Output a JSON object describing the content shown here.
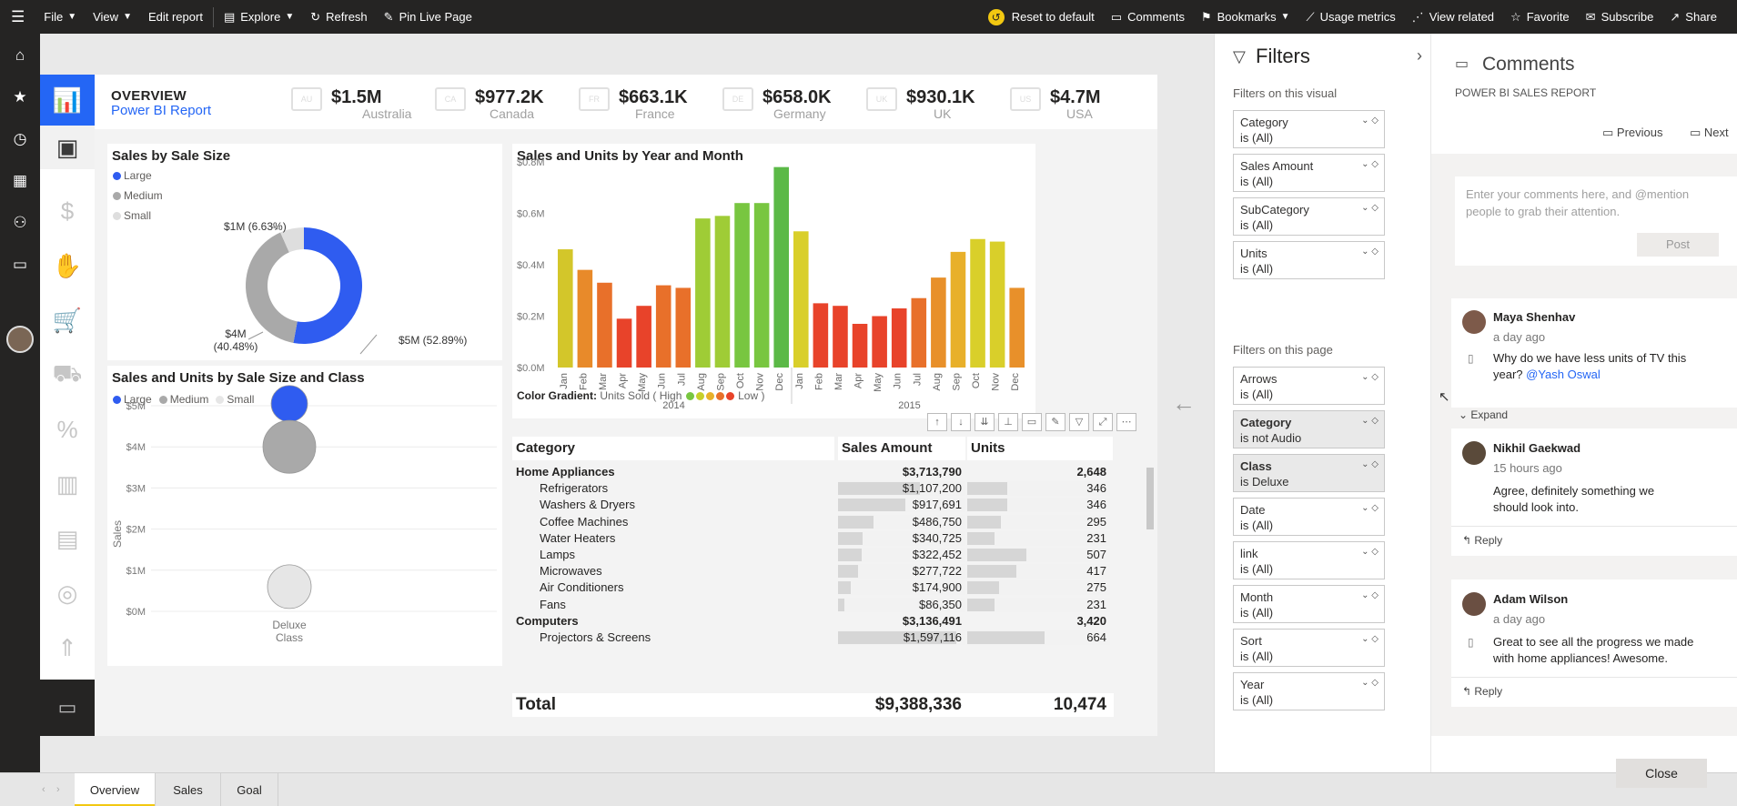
{
  "topbar": {
    "file": "File",
    "view": "View",
    "edit_report": "Edit report",
    "explore": "Explore",
    "refresh": "Refresh",
    "pin_live_page": "Pin Live Page",
    "reset_to_default": "Reset to default",
    "comments": "Comments",
    "bookmarks": "Bookmarks",
    "usage_metrics": "Usage metrics",
    "view_related": "View related",
    "favorite": "Favorite",
    "subscribe": "Subscribe",
    "share": "Share"
  },
  "header": {
    "title": "OVERVIEW",
    "subtitle": "Power BI Report"
  },
  "kpis": [
    {
      "value": "$1.5M",
      "label": "Australia",
      "flag": "AU"
    },
    {
      "value": "$977.2K",
      "label": "Canada",
      "flag": "CA"
    },
    {
      "value": "$663.1K",
      "label": "France",
      "flag": "FR"
    },
    {
      "value": "$658.0K",
      "label": "Germany",
      "flag": "DE"
    },
    {
      "value": "$930.1K",
      "label": "UK",
      "flag": "UK"
    },
    {
      "value": "$4.7M",
      "label": "USA",
      "flag": "US"
    }
  ],
  "chart_data": [
    {
      "type": "pie",
      "title": "Sales by Sale Size",
      "categories": [
        "Large",
        "Medium",
        "Small"
      ],
      "values": [
        52.89,
        40.48,
        6.63
      ],
      "labels": [
        "$5M (52.89%)",
        "$4M (40.48%)",
        "$1M (6.63%)"
      ],
      "colors": [
        "#2f5cf0",
        "#a9a9a9",
        "#dedede"
      ],
      "legend": "top-left"
    },
    {
      "type": "bar",
      "title": "Sales and Units by Year and Month",
      "categories": [
        "Jan",
        "Feb",
        "Mar",
        "Apr",
        "May",
        "Jun",
        "Jul",
        "Aug",
        "Sep",
        "Oct",
        "Nov",
        "Dec",
        "Jan",
        "Feb",
        "Mar",
        "Apr",
        "May",
        "Jun",
        "Jul",
        "Aug",
        "Sep",
        "Oct",
        "Nov",
        "Dec"
      ],
      "groups": [
        "2014",
        "2015"
      ],
      "values": [
        0.46,
        0.38,
        0.33,
        0.19,
        0.24,
        0.32,
        0.31,
        0.58,
        0.59,
        0.64,
        0.64,
        0.78,
        0.53,
        0.25,
        0.24,
        0.17,
        0.2,
        0.23,
        0.27,
        0.35,
        0.45,
        0.5,
        0.49,
        0.31
      ],
      "colors": [
        "#d3c62a",
        "#e88a2a",
        "#e8702a",
        "#e8432a",
        "#e8432a",
        "#e8702a",
        "#e8702a",
        "#9fcc36",
        "#9fcc36",
        "#78c640",
        "#78c640",
        "#5bb947",
        "#d9cf2a",
        "#e8432a",
        "#e8432a",
        "#e8432a",
        "#e8432a",
        "#e8432a",
        "#e8702a",
        "#e8902a",
        "#e8b02a",
        "#d9cf2a",
        "#d9cf2a",
        "#e8902a"
      ],
      "ytick_labels": [
        "$0.0M",
        "$0.2M",
        "$0.4M",
        "$0.6M",
        "$0.8M"
      ],
      "ylim": [
        0,
        0.8
      ],
      "gradient_label": "Color Gradient:",
      "gradient_text": "Units Sold  ( High",
      "gradient_low": "Low )",
      "gradient_colors": [
        "#78c640",
        "#c7cf2a",
        "#e8b02a",
        "#e8702a",
        "#e8432a"
      ]
    },
    {
      "type": "scatter",
      "title": "Sales and Units by Sale Size and Class",
      "legend": [
        "Large",
        "Medium",
        "Small"
      ],
      "legend_colors": [
        "#2f5cf0",
        "#a9a9a9",
        "#dedede"
      ],
      "ylabel": "Sales",
      "ytick_labels": [
        "$0M",
        "$1M",
        "$2M",
        "$3M",
        "$4M",
        "$5M"
      ],
      "ylim": [
        0,
        5
      ],
      "x_category": "Deluxe",
      "xlabel": "Class",
      "points": [
        {
          "series": "Large",
          "y": 5.05,
          "color": "#2f5cf0"
        },
        {
          "series": "Medium",
          "y": 4.0,
          "color": "#a9a9a9"
        },
        {
          "series": "Small",
          "y": 0.6,
          "color": "#e6e6e6"
        }
      ]
    }
  ],
  "table": {
    "headers": [
      "Category",
      "Sales Amount",
      "Units"
    ],
    "rows": [
      {
        "name": "Home Appliances",
        "sales": "$3,713,790",
        "units": "2,648",
        "group": true
      },
      {
        "name": "Refrigerators",
        "sales": "$1,107,200",
        "units": "346",
        "sales_frac": 0.69,
        "units_frac": 0.52
      },
      {
        "name": "Washers & Dryers",
        "sales": "$917,691",
        "units": "346",
        "sales_frac": 0.57,
        "units_frac": 0.52
      },
      {
        "name": "Coffee Machines",
        "sales": "$486,750",
        "units": "295",
        "sales_frac": 0.3,
        "units_frac": 0.44
      },
      {
        "name": "Water Heaters",
        "sales": "$340,725",
        "units": "231",
        "sales_frac": 0.21,
        "units_frac": 0.35
      },
      {
        "name": "Lamps",
        "sales": "$322,452",
        "units": "507",
        "sales_frac": 0.2,
        "units_frac": 0.76
      },
      {
        "name": "Microwaves",
        "sales": "$277,722",
        "units": "417",
        "sales_frac": 0.17,
        "units_frac": 0.63
      },
      {
        "name": "Air Conditioners",
        "sales": "$174,900",
        "units": "275",
        "sales_frac": 0.11,
        "units_frac": 0.41
      },
      {
        "name": "Fans",
        "sales": "$86,350",
        "units": "231",
        "sales_frac": 0.05,
        "units_frac": 0.35
      },
      {
        "name": "Computers",
        "sales": "$3,136,491",
        "units": "3,420",
        "group": true
      },
      {
        "name": "Projectors & Screens",
        "sales": "$1,597,116",
        "units": "664",
        "sales_frac": 1.0,
        "units_frac": 1.0
      }
    ],
    "total_label": "Total",
    "total_sales": "$9,388,336",
    "total_units": "10,474"
  },
  "filters": {
    "title": "Filters",
    "visual_section": "Filters on this visual",
    "page_section": "Filters on this page",
    "visual": [
      {
        "name": "Category",
        "value": "is (All)"
      },
      {
        "name": "Sales Amount",
        "value": "is (All)"
      },
      {
        "name": "SubCategory",
        "value": "is (All)"
      },
      {
        "name": "Units",
        "value": "is (All)"
      }
    ],
    "page": [
      {
        "name": "Arrows",
        "value": "is (All)",
        "modified": false
      },
      {
        "name": "Category",
        "value": "is not Audio",
        "modified": true
      },
      {
        "name": "Class",
        "value": "is Deluxe",
        "modified": true
      },
      {
        "name": "Date",
        "value": "is (All)",
        "modified": false
      },
      {
        "name": "link",
        "value": "is (All)",
        "modified": false
      },
      {
        "name": "Month",
        "value": "is (All)",
        "modified": false
      },
      {
        "name": "Sort",
        "value": "is (All)",
        "modified": false
      },
      {
        "name": "Year",
        "value": "is (All)",
        "modified": false
      }
    ]
  },
  "comments": {
    "title": "Comments",
    "report_name": "POWER BI SALES REPORT",
    "previous": "Previous",
    "next": "Next",
    "placeholder": "Enter your comments here, and @mention people to grab their attention.",
    "post": "Post",
    "expand": "Expand",
    "reply": "Reply",
    "items": [
      {
        "author": "Maya Shenhav",
        "time": "a day ago",
        "text": "Why do we have less units of TV this year?",
        "mention": "@Yash Oswal"
      },
      {
        "author": "Nikhil Gaekwad",
        "time": "15 hours ago",
        "text": "Agree, definitely something we should look into."
      },
      {
        "author": "Adam Wilson",
        "time": "a day ago",
        "text": "Great to see all the progress we made with home appliances! Awesome."
      }
    ],
    "close": "Close"
  },
  "tabs": [
    "Overview",
    "Sales",
    "Goal"
  ],
  "active_tab": "Overview"
}
